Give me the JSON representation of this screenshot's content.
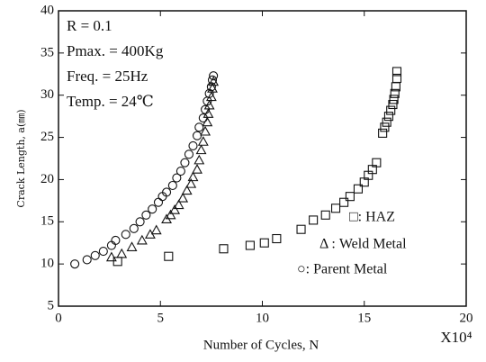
{
  "chart_data": {
    "type": "scatter",
    "xlabel": "Number of Cycles, N",
    "x_multiplier": "X10⁴",
    "ylabel": "Crack Length, a(㎜)",
    "annotations": [
      "R = 0.1",
      "Pmax. = 400Kg",
      "Freq. = 25Hz",
      "Temp. = 24℃"
    ],
    "xlim": [
      0,
      20
    ],
    "xticks": [
      0,
      5,
      10,
      15,
      20
    ],
    "ylim": [
      5,
      40
    ],
    "yticks": [
      5,
      10,
      15,
      20,
      25,
      30,
      35,
      40
    ],
    "grid": false,
    "legend": "lower right",
    "series": [
      {
        "name": "□: HAZ",
        "marker": "square",
        "color": "#111111",
        "x": [
          2.9,
          5.4,
          8.1,
          9.4,
          10.1,
          10.7,
          11.9,
          12.5,
          13.1,
          13.6,
          14.0,
          14.3,
          14.7,
          15.0,
          15.2,
          15.4,
          15.6,
          15.9,
          16.0,
          16.1,
          16.2,
          16.3,
          16.4,
          16.45,
          16.5,
          16.55,
          16.6,
          16.6
        ],
        "values": [
          10.3,
          10.9,
          11.8,
          12.2,
          12.5,
          13.0,
          14.1,
          15.2,
          15.8,
          16.6,
          17.3,
          18.0,
          18.9,
          19.7,
          20.5,
          21.2,
          22.0,
          25.5,
          26.2,
          26.8,
          27.5,
          28.2,
          28.9,
          29.5,
          30.2,
          31.0,
          32.0,
          32.8
        ]
      },
      {
        "name": "Δ : Weld Metal",
        "marker": "triangle",
        "color": "#111111",
        "x": [
          2.6,
          3.1,
          3.6,
          4.1,
          4.5,
          4.8,
          5.3,
          5.5,
          5.7,
          5.9,
          6.1,
          6.3,
          6.5,
          6.6,
          6.8,
          6.9,
          7.0,
          7.1,
          7.2,
          7.3,
          7.35,
          7.4,
          7.5,
          7.55,
          7.6
        ],
        "values": [
          10.8,
          11.2,
          12.0,
          12.8,
          13.5,
          14.0,
          15.3,
          15.8,
          16.4,
          17.0,
          17.8,
          18.7,
          19.5,
          20.3,
          21.2,
          22.3,
          23.5,
          24.5,
          25.7,
          26.8,
          27.8,
          28.8,
          29.8,
          30.8,
          31.6
        ]
      },
      {
        "name": "○: Parent Metal",
        "marker": "circle",
        "color": "#111111",
        "x": [
          0.8,
          1.4,
          1.8,
          2.2,
          2.6,
          2.8,
          3.3,
          3.7,
          4.0,
          4.3,
          4.6,
          4.9,
          5.1,
          5.3,
          5.6,
          5.8,
          6.0,
          6.2,
          6.4,
          6.6,
          6.8,
          6.9,
          7.1,
          7.2,
          7.3,
          7.4,
          7.5,
          7.55,
          7.6
        ],
        "values": [
          10.0,
          10.5,
          11.0,
          11.5,
          12.2,
          12.8,
          13.5,
          14.2,
          15.0,
          15.8,
          16.5,
          17.3,
          18.0,
          18.5,
          19.3,
          20.2,
          21.0,
          22.0,
          23.0,
          24.0,
          25.2,
          26.2,
          27.3,
          28.3,
          29.3,
          30.2,
          31.0,
          31.8,
          32.3
        ]
      }
    ]
  }
}
